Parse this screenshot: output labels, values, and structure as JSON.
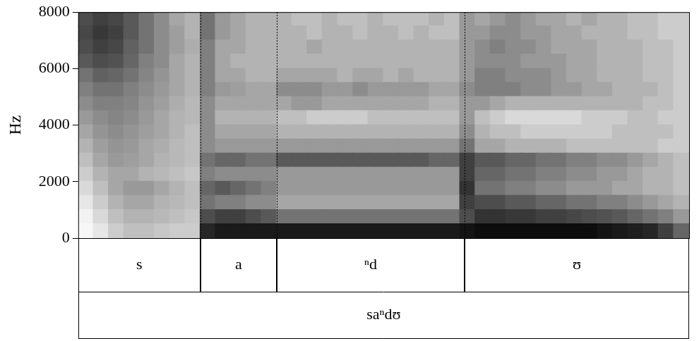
{
  "chart_data": {
    "type": "heatmap",
    "y_label": "Hz",
    "ylim": [
      0,
      8000
    ],
    "yticks": [
      0,
      2000,
      4000,
      6000,
      8000
    ],
    "xlim": [
      0,
      40
    ],
    "tick_labels": "y",
    "grid": false,
    "color": "#000000",
    "zlim": [
      0,
      100
    ],
    "frequency_bins": [
      0,
      500,
      1000,
      1500,
      2000,
      2500,
      3000,
      3500,
      4000,
      4500,
      5000,
      5500,
      6000,
      6500,
      7000,
      7500,
      8000
    ],
    "values": [
      [
        3,
        10,
        20,
        25,
        25,
        22,
        20,
        20,
        85,
        90,
        90,
        90,
        90,
        90,
        90,
        90,
        90,
        90,
        90,
        90,
        90,
        90,
        90,
        90,
        90,
        92,
        95,
        95,
        95,
        95,
        95,
        95,
        95,
        95,
        92,
        90,
        88,
        85,
        75,
        60
      ],
      [
        5,
        15,
        25,
        30,
        30,
        28,
        25,
        22,
        70,
        75,
        75,
        70,
        65,
        55,
        55,
        55,
        55,
        55,
        55,
        55,
        55,
        55,
        55,
        55,
        55,
        70,
        80,
        80,
        78,
        78,
        75,
        75,
        72,
        70,
        68,
        65,
        60,
        55,
        50,
        40
      ],
      [
        10,
        20,
        30,
        35,
        35,
        30,
        28,
        25,
        55,
        50,
        50,
        45,
        45,
        35,
        35,
        35,
        35,
        35,
        35,
        35,
        35,
        35,
        35,
        35,
        35,
        75,
        70,
        70,
        65,
        65,
        60,
        60,
        55,
        55,
        50,
        50,
        45,
        40,
        35,
        30
      ],
      [
        15,
        25,
        35,
        40,
        40,
        35,
        30,
        25,
        60,
        65,
        60,
        55,
        50,
        40,
        40,
        40,
        40,
        40,
        40,
        40,
        40,
        40,
        40,
        40,
        40,
        80,
        55,
        55,
        50,
        50,
        45,
        45,
        40,
        40,
        40,
        35,
        35,
        30,
        30,
        25
      ],
      [
        20,
        30,
        35,
        35,
        30,
        28,
        25,
        22,
        50,
        45,
        45,
        45,
        45,
        40,
        40,
        40,
        40,
        40,
        40,
        40,
        40,
        40,
        40,
        40,
        40,
        75,
        60,
        60,
        55,
        55,
        50,
        50,
        45,
        45,
        40,
        40,
        35,
        30,
        30,
        25
      ],
      [
        25,
        35,
        40,
        38,
        35,
        30,
        28,
        25,
        55,
        60,
        60,
        55,
        55,
        65,
        65,
        65,
        65,
        65,
        65,
        65,
        65,
        65,
        65,
        60,
        60,
        75,
        65,
        65,
        60,
        60,
        55,
        55,
        50,
        50,
        45,
        45,
        40,
        35,
        30,
        25
      ],
      [
        30,
        38,
        42,
        40,
        35,
        32,
        28,
        25,
        45,
        40,
        40,
        40,
        40,
        40,
        40,
        40,
        40,
        40,
        40,
        40,
        40,
        40,
        40,
        40,
        40,
        55,
        35,
        35,
        30,
        30,
        30,
        30,
        25,
        25,
        25,
        25,
        25,
        25,
        20,
        20
      ],
      [
        35,
        42,
        45,
        42,
        38,
        35,
        30,
        25,
        45,
        35,
        35,
        35,
        35,
        30,
        30,
        30,
        30,
        30,
        30,
        30,
        30,
        30,
        30,
        30,
        30,
        45,
        30,
        25,
        25,
        20,
        20,
        20,
        20,
        20,
        20,
        25,
        25,
        25,
        25,
        20
      ],
      [
        40,
        45,
        48,
        45,
        40,
        35,
        30,
        28,
        45,
        30,
        30,
        30,
        30,
        25,
        25,
        20,
        20,
        20,
        20,
        25,
        25,
        25,
        25,
        25,
        25,
        40,
        25,
        20,
        15,
        15,
        15,
        15,
        15,
        20,
        20,
        20,
        25,
        25,
        20,
        20
      ],
      [
        45,
        50,
        50,
        48,
        42,
        38,
        32,
        28,
        45,
        35,
        35,
        35,
        35,
        35,
        40,
        40,
        35,
        35,
        35,
        35,
        35,
        35,
        35,
        30,
        30,
        40,
        40,
        35,
        30,
        30,
        30,
        30,
        30,
        30,
        30,
        30,
        30,
        25,
        25,
        20
      ],
      [
        50,
        55,
        55,
        50,
        45,
        40,
        35,
        30,
        50,
        40,
        38,
        35,
        35,
        45,
        45,
        45,
        40,
        40,
        45,
        40,
        40,
        40,
        40,
        35,
        35,
        45,
        50,
        50,
        50,
        45,
        45,
        40,
        40,
        35,
        35,
        30,
        30,
        30,
        25,
        20
      ],
      [
        55,
        62,
        60,
        55,
        48,
        42,
        35,
        30,
        50,
        35,
        35,
        30,
        30,
        35,
        35,
        35,
        35,
        30,
        35,
        35,
        30,
        35,
        30,
        30,
        30,
        40,
        50,
        50,
        45,
        45,
        45,
        40,
        35,
        35,
        30,
        30,
        30,
        25,
        25,
        20
      ],
      [
        65,
        70,
        68,
        60,
        50,
        45,
        35,
        30,
        50,
        35,
        30,
        30,
        30,
        30,
        30,
        30,
        30,
        30,
        30,
        30,
        30,
        30,
        30,
        30,
        30,
        40,
        45,
        45,
        45,
        40,
        40,
        40,
        35,
        35,
        30,
        30,
        30,
        25,
        25,
        20
      ],
      [
        70,
        75,
        72,
        62,
        55,
        45,
        38,
        32,
        50,
        35,
        35,
        30,
        30,
        30,
        30,
        35,
        30,
        30,
        30,
        30,
        30,
        30,
        30,
        30,
        30,
        40,
        45,
        50,
        45,
        45,
        40,
        35,
        35,
        35,
        30,
        30,
        30,
        25,
        25,
        20
      ],
      [
        72,
        78,
        75,
        65,
        55,
        45,
        38,
        30,
        55,
        40,
        35,
        30,
        30,
        30,
        30,
        25,
        30,
        30,
        25,
        30,
        30,
        25,
        30,
        25,
        25,
        40,
        40,
        45,
        45,
        40,
        40,
        35,
        35,
        30,
        30,
        30,
        25,
        25,
        20,
        20
      ],
      [
        70,
        75,
        72,
        65,
        55,
        45,
        35,
        30,
        55,
        40,
        35,
        30,
        30,
        30,
        25,
        25,
        30,
        25,
        25,
        30,
        25,
        25,
        25,
        30,
        25,
        40,
        35,
        40,
        45,
        40,
        35,
        35,
        30,
        35,
        30,
        30,
        25,
        25,
        20,
        20
      ]
    ],
    "segments": [
      {
        "label": "s",
        "start": 0,
        "end": 8
      },
      {
        "label": "a",
        "start": 8,
        "end": 13
      },
      {
        "label": "ⁿd",
        "start": 13,
        "end": 25.3
      },
      {
        "label": "ʊ",
        "start": 25.3,
        "end": 40
      }
    ],
    "word": {
      "label": "saⁿdʊ",
      "start": 0,
      "end": 40
    }
  }
}
